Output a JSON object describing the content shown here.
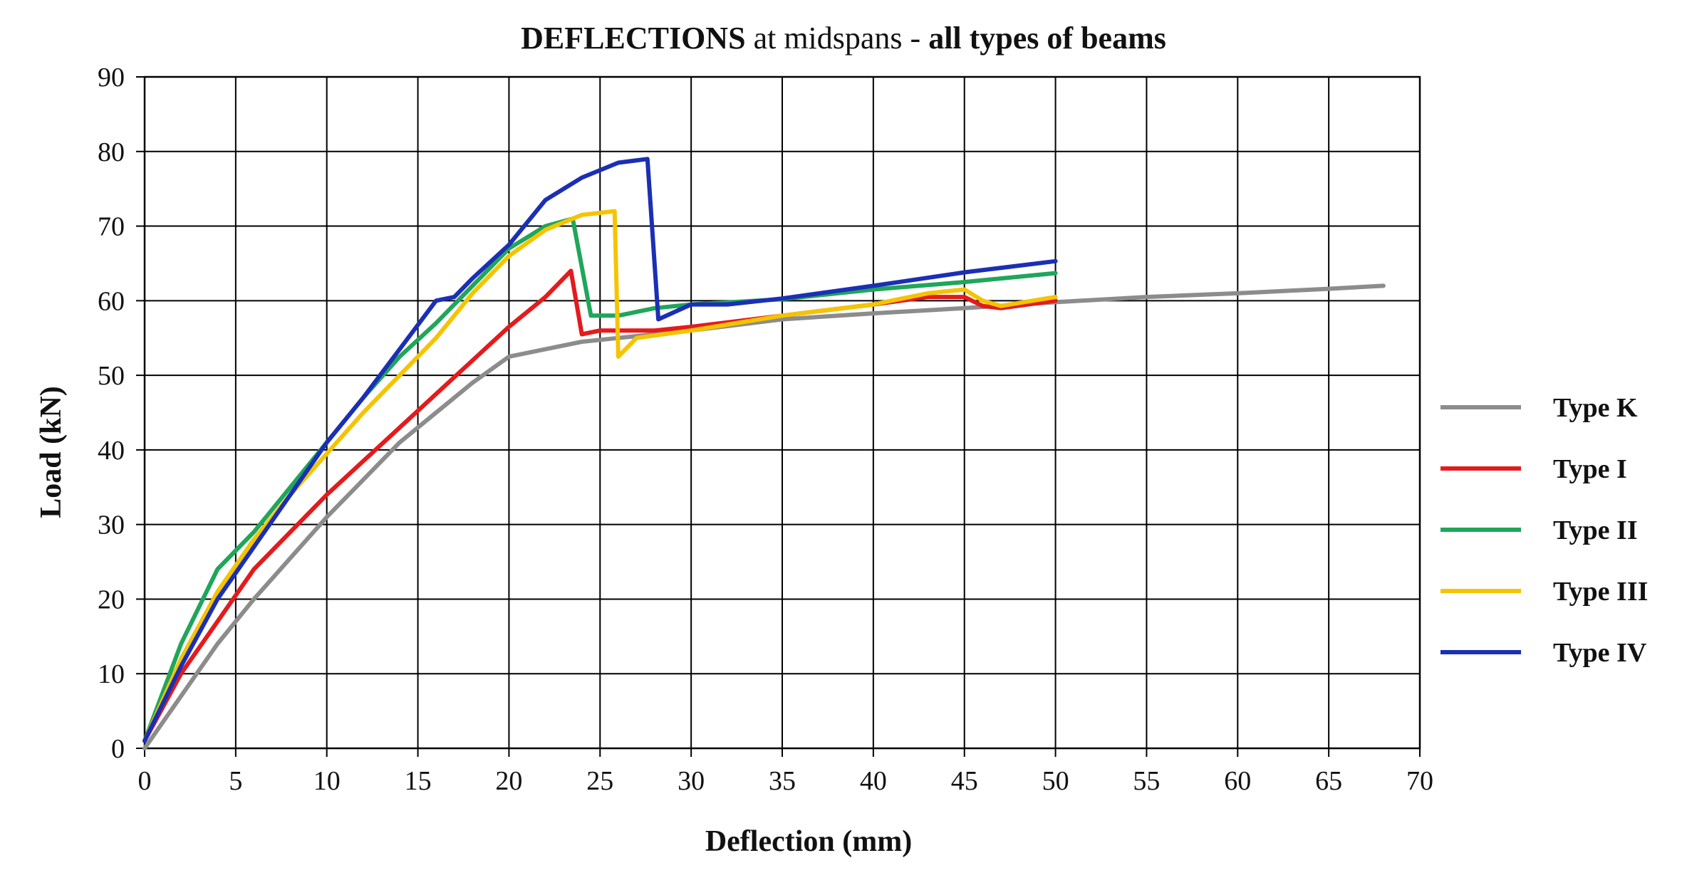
{
  "chart_data": {
    "type": "line",
    "title_parts": [
      {
        "text": "DEFLECTIONS",
        "bold": true
      },
      {
        "text": " at midspans - ",
        "bold": false
      },
      {
        "text": " all types of beams",
        "bold": true
      }
    ],
    "xlabel": "Deflection (mm)",
    "ylabel": "Load (kN)",
    "xlim": [
      0,
      70
    ],
    "ylim": [
      0,
      90
    ],
    "xticks": [
      0,
      5,
      10,
      15,
      20,
      25,
      30,
      35,
      40,
      45,
      50,
      55,
      60,
      65,
      70
    ],
    "yticks": [
      0,
      10,
      20,
      30,
      40,
      50,
      60,
      70,
      80,
      90
    ],
    "grid": true,
    "legend_position": "right",
    "series": [
      {
        "name": "Type K",
        "color": "#8c8c8c",
        "points": [
          [
            0,
            0
          ],
          [
            2,
            7
          ],
          [
            4,
            14
          ],
          [
            6,
            20
          ],
          [
            8,
            25.5
          ],
          [
            10,
            31
          ],
          [
            12,
            36
          ],
          [
            14,
            41
          ],
          [
            16,
            45
          ],
          [
            18,
            49
          ],
          [
            20,
            52.5
          ],
          [
            22,
            53.5
          ],
          [
            24,
            54.5
          ],
          [
            26,
            55
          ],
          [
            30,
            56
          ],
          [
            35,
            57.5
          ],
          [
            40,
            58.3
          ],
          [
            45,
            59
          ],
          [
            50,
            59.8
          ],
          [
            55,
            60.5
          ],
          [
            60,
            61
          ],
          [
            65,
            61.6
          ],
          [
            68,
            62
          ]
        ]
      },
      {
        "name": "Type I",
        "color": "#e41a1c",
        "points": [
          [
            0,
            1
          ],
          [
            2,
            10
          ],
          [
            4,
            17
          ],
          [
            6,
            24
          ],
          [
            8,
            29
          ],
          [
            10,
            34
          ],
          [
            12,
            38.5
          ],
          [
            14,
            43
          ],
          [
            16,
            47.5
          ],
          [
            18,
            52
          ],
          [
            20,
            56.5
          ],
          [
            22,
            60.5
          ],
          [
            23.4,
            64
          ],
          [
            24,
            55.5
          ],
          [
            25,
            56
          ],
          [
            28,
            56
          ],
          [
            30,
            56.5
          ],
          [
            35,
            58
          ],
          [
            40,
            59.5
          ],
          [
            43,
            60.5
          ],
          [
            45,
            60.5
          ],
          [
            46,
            59.3
          ],
          [
            47,
            59
          ],
          [
            50,
            60
          ]
        ]
      },
      {
        "name": "Type II",
        "color": "#1fa65a",
        "points": [
          [
            0,
            1
          ],
          [
            2,
            14
          ],
          [
            4,
            24
          ],
          [
            6,
            29
          ],
          [
            8,
            35
          ],
          [
            10,
            41
          ],
          [
            12,
            47
          ],
          [
            14,
            52.5
          ],
          [
            16,
            57
          ],
          [
            18,
            62
          ],
          [
            20,
            67
          ],
          [
            22,
            70
          ],
          [
            23.5,
            71
          ],
          [
            24.5,
            58
          ],
          [
            26,
            58
          ],
          [
            28,
            59
          ],
          [
            30,
            59.5
          ],
          [
            35,
            60.2
          ],
          [
            40,
            61.5
          ],
          [
            45,
            62.5
          ],
          [
            50,
            63.7
          ]
        ]
      },
      {
        "name": "Type III",
        "color": "#f5c400",
        "points": [
          [
            0,
            1
          ],
          [
            2,
            12
          ],
          [
            4,
            21
          ],
          [
            6,
            28
          ],
          [
            8,
            34
          ],
          [
            10,
            39.5
          ],
          [
            12,
            45
          ],
          [
            14,
            50
          ],
          [
            16,
            55
          ],
          [
            18,
            61
          ],
          [
            20,
            66
          ],
          [
            22,
            69.5
          ],
          [
            24,
            71.5
          ],
          [
            25.8,
            72
          ],
          [
            26,
            52.5
          ],
          [
            27,
            55
          ],
          [
            30,
            56
          ],
          [
            35,
            58
          ],
          [
            40,
            59.5
          ],
          [
            43,
            61
          ],
          [
            45,
            61.5
          ],
          [
            46,
            60
          ],
          [
            47,
            59.3
          ],
          [
            50,
            60.5
          ]
        ]
      },
      {
        "name": "Type IV",
        "color": "#1b2fb5",
        "points": [
          [
            0,
            1
          ],
          [
            2,
            11
          ],
          [
            4,
            20
          ],
          [
            6,
            27
          ],
          [
            8,
            34
          ],
          [
            10,
            41
          ],
          [
            12,
            47
          ],
          [
            14,
            53.5
          ],
          [
            16,
            60
          ],
          [
            17,
            60.5
          ],
          [
            18,
            63
          ],
          [
            20,
            67.5
          ],
          [
            22,
            73.5
          ],
          [
            24,
            76.5
          ],
          [
            26,
            78.5
          ],
          [
            27.6,
            79
          ],
          [
            28.2,
            57.5
          ],
          [
            30,
            59.5
          ],
          [
            32,
            59.5
          ],
          [
            35,
            60.3
          ],
          [
            40,
            62
          ],
          [
            45,
            63.8
          ],
          [
            50,
            65.3
          ]
        ]
      }
    ]
  }
}
